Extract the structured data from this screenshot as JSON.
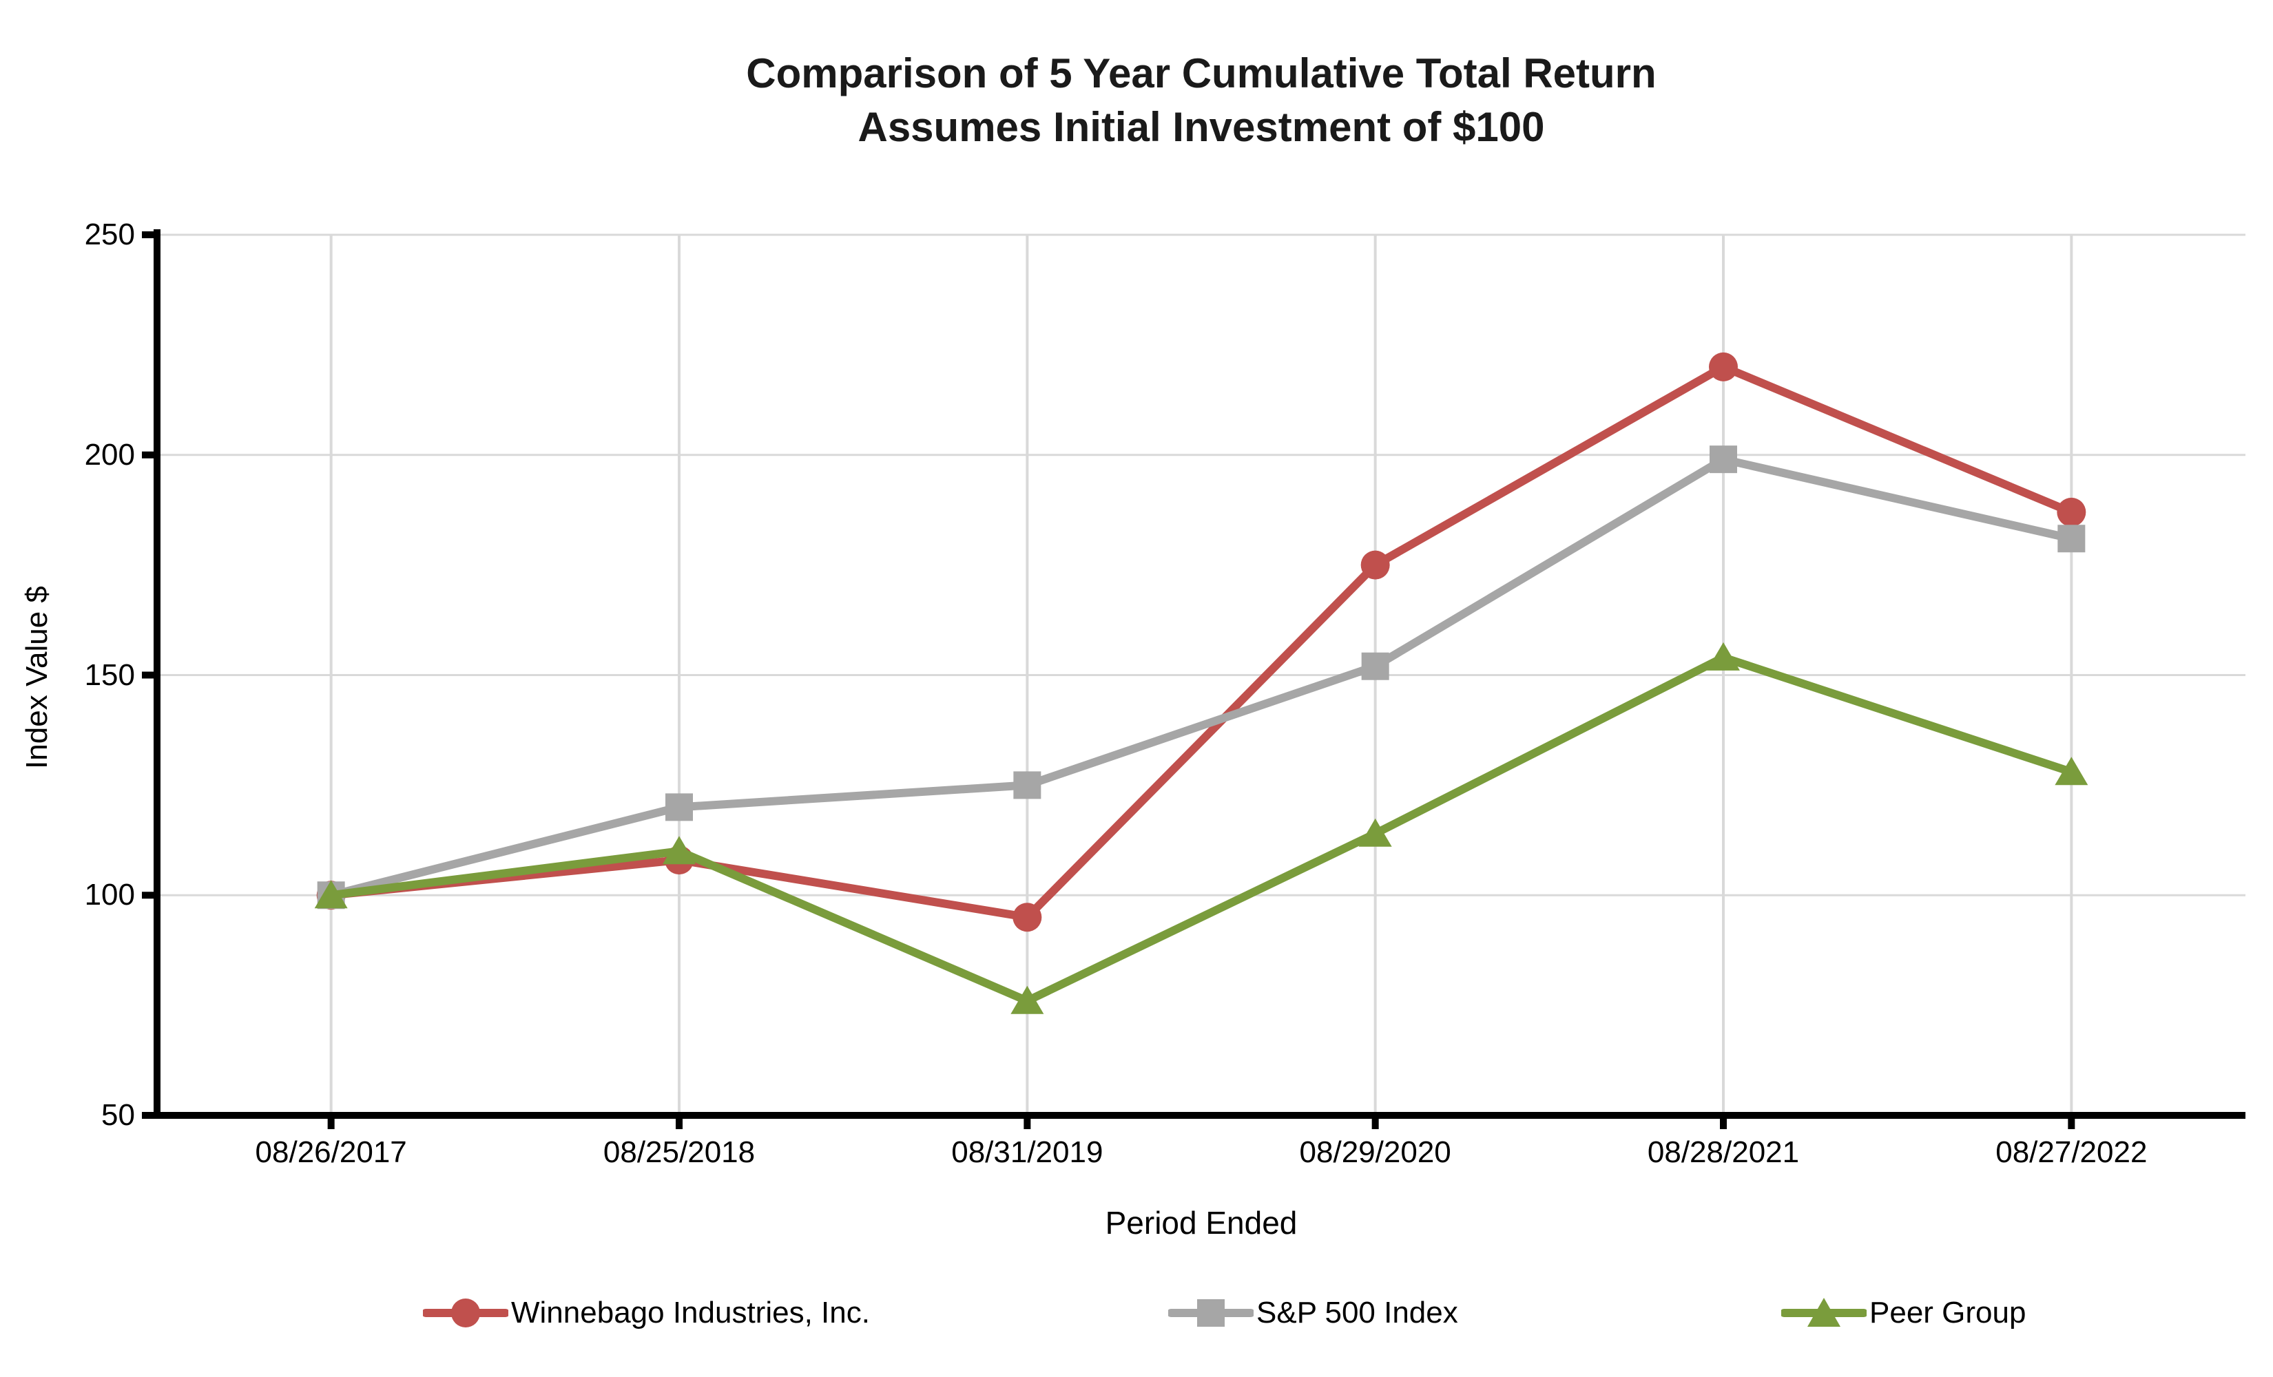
{
  "page": {
    "background": "#FFFFFF"
  },
  "chart_data": {
    "type": "line",
    "title": "Comparison of 5 Year Cumulative Total Return",
    "subtitle": "Assumes Initial Investment of $100",
    "xlabel": "Period Ended",
    "ylabel": "Index Value $",
    "categories": [
      "08/26/2017",
      "08/25/2018",
      "08/31/2019",
      "08/29/2020",
      "08/28/2021",
      "08/27/2022"
    ],
    "series": [
      {
        "name": "Winnebago Industries, Inc.",
        "marker": "circle",
        "color": "#C0504D",
        "values": [
          100,
          108,
          95,
          175,
          220,
          187
        ]
      },
      {
        "name": "S&P 500 Index",
        "marker": "square",
        "color": "#A6A6A6",
        "values": [
          100,
          120,
          125,
          152,
          199,
          181
        ]
      },
      {
        "name": "Peer Group",
        "marker": "triangle",
        "color": "#7A9C3C",
        "values": [
          100,
          110,
          76,
          114,
          154,
          128
        ]
      }
    ],
    "ylim": [
      50,
      250
    ],
    "yticks": [
      50,
      100,
      150,
      200,
      250
    ],
    "grid": true,
    "legend_position": "bottom",
    "colors": {
      "axis": "#000000",
      "gridline": "#D9D9D9",
      "text": "#000000"
    }
  }
}
